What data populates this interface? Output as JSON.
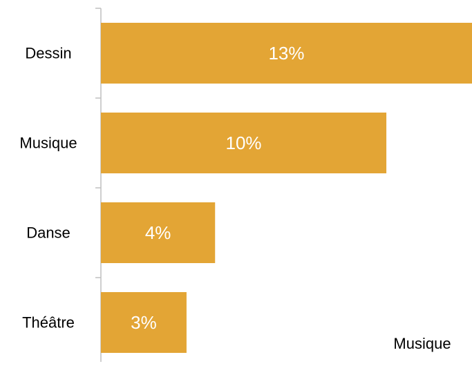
{
  "chart_data": {
    "type": "bar",
    "orientation": "horizontal",
    "categories": [
      "Dessin",
      "Musique",
      "Danse",
      "Théâtre"
    ],
    "values": [
      13,
      10,
      4,
      3
    ],
    "value_labels": [
      "13%",
      "10%",
      "4%",
      "3%"
    ],
    "unit": "%",
    "bar_color": "#E3A535",
    "xlim": [
      0,
      13
    ],
    "grid": false,
    "legend_placement": "bottom-right",
    "legend_text": "Musique"
  }
}
